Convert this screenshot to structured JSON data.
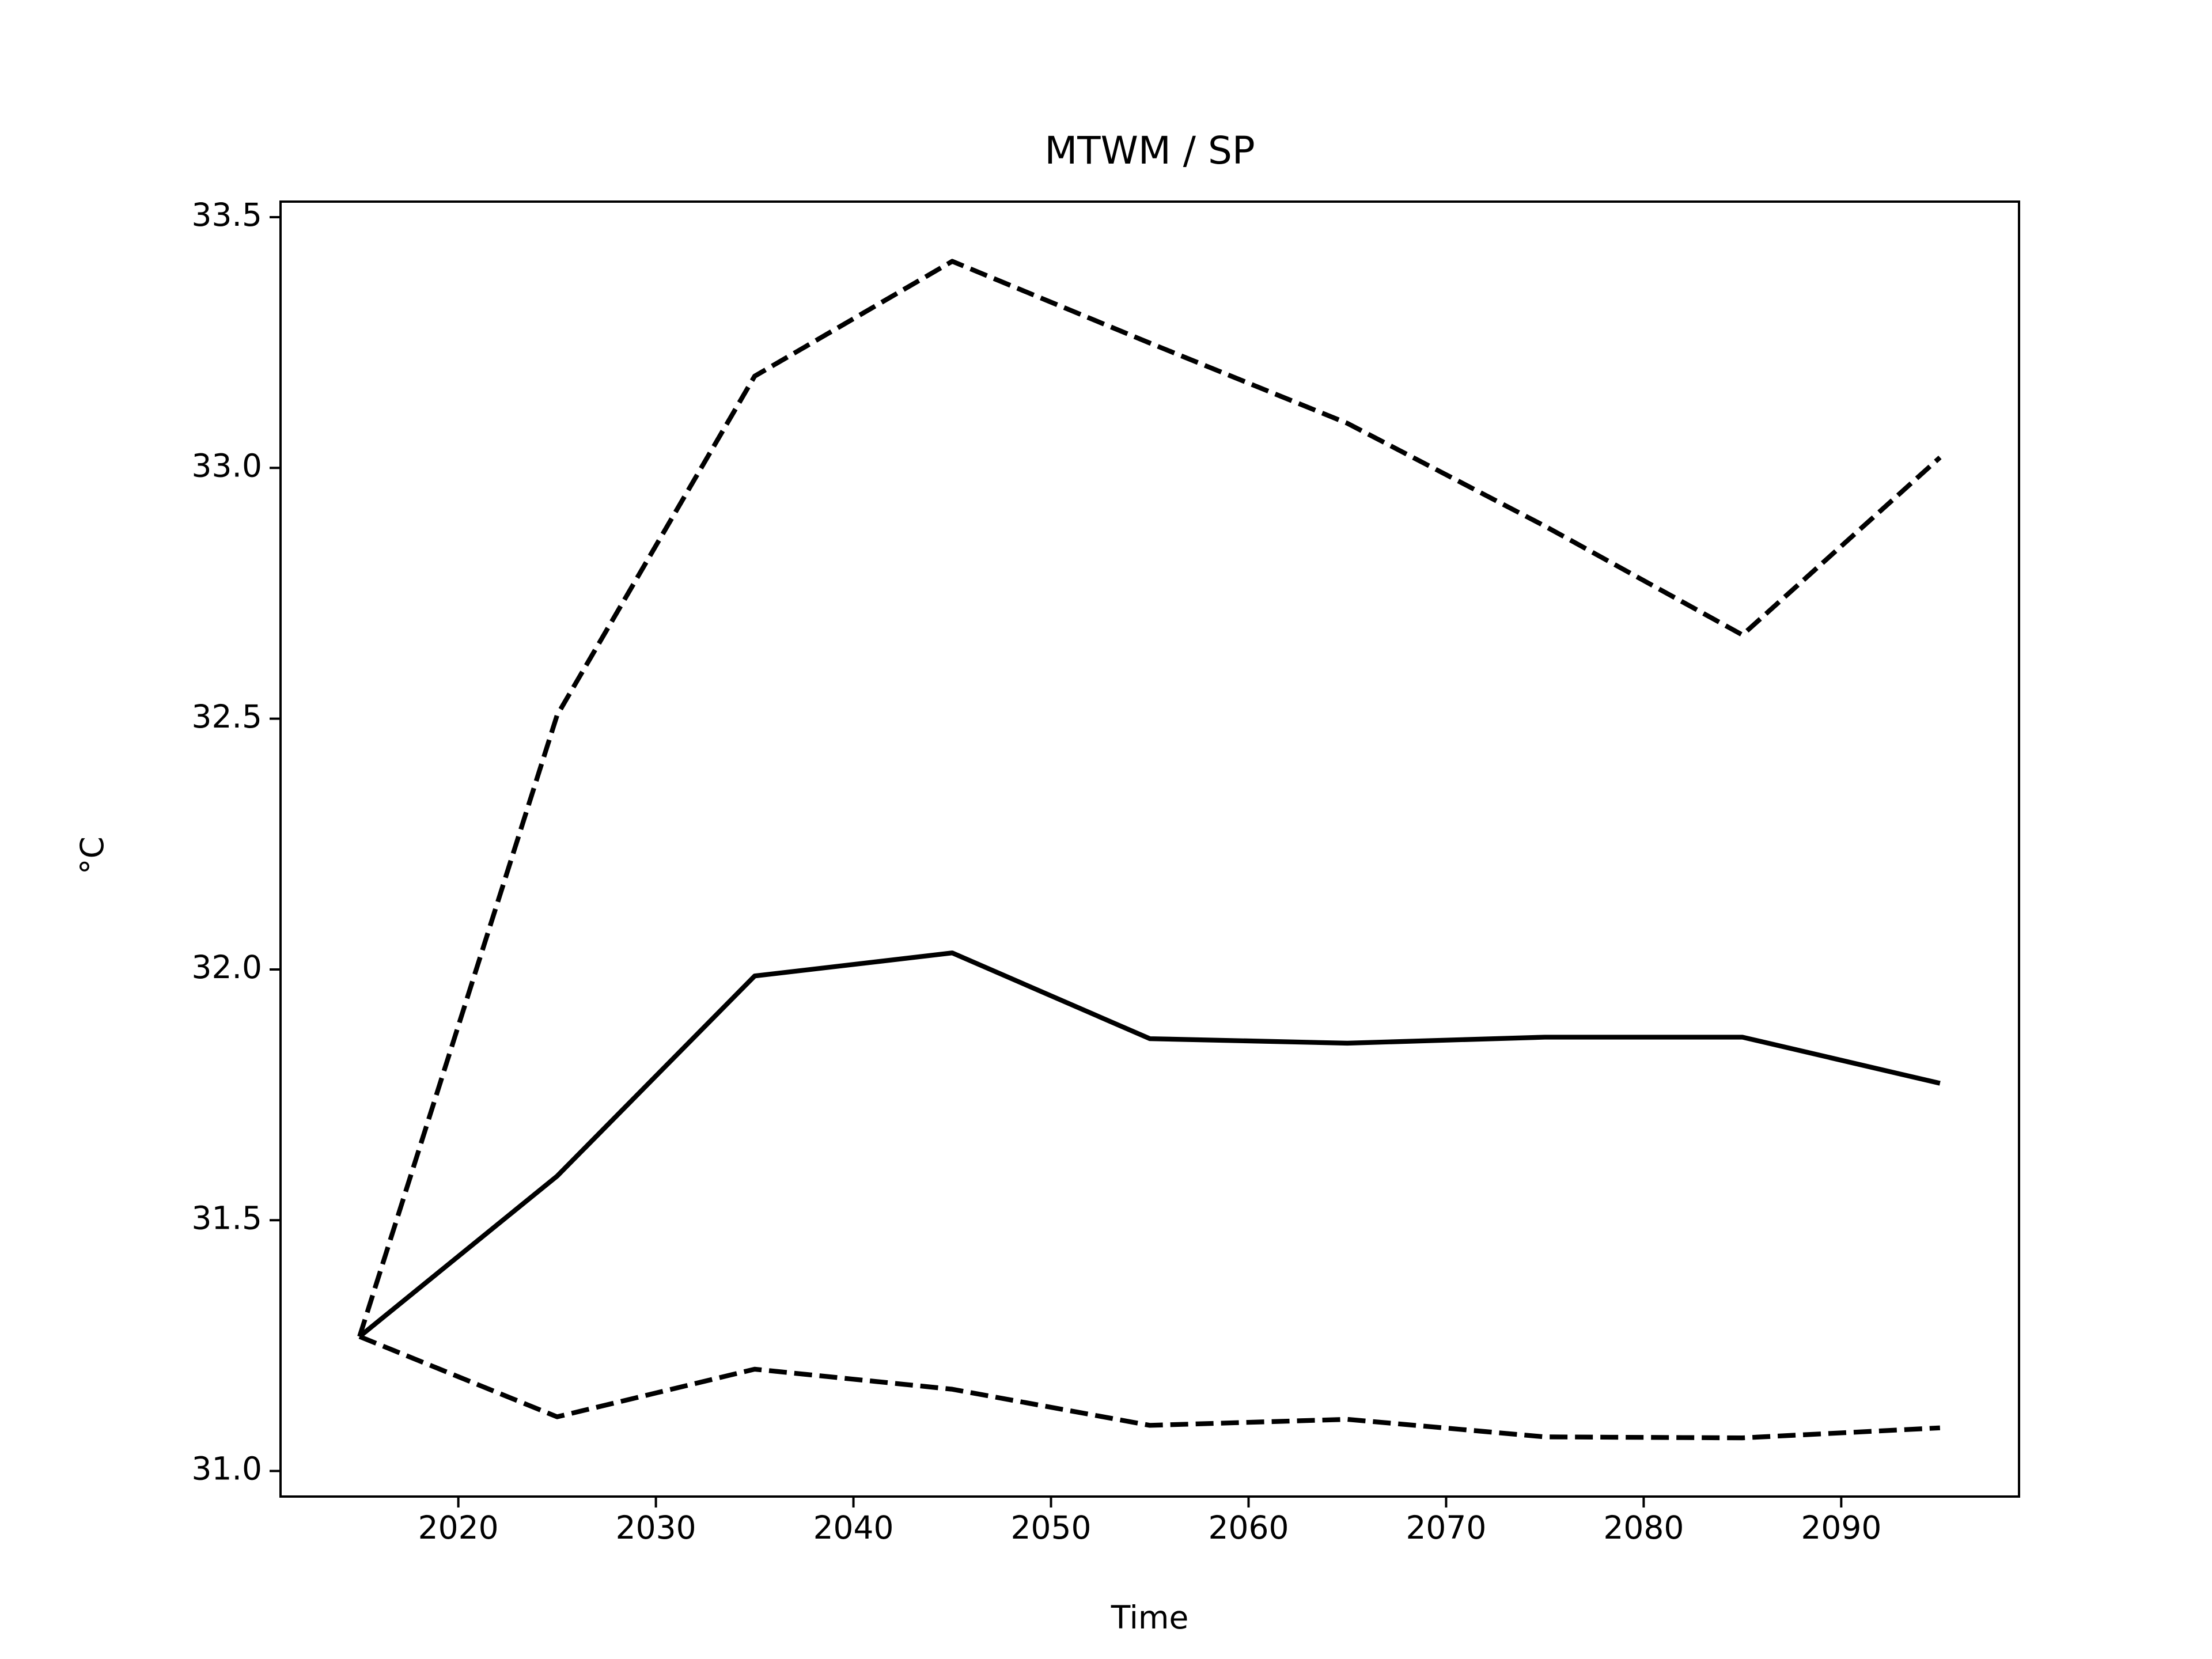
{
  "chart_data": {
    "type": "line",
    "title": "MTWM / SP",
    "x_label": "Time",
    "y_label": "°C",
    "x": [
      2015,
      2025,
      2035,
      2045,
      2055,
      2065,
      2075,
      2085,
      2095
    ],
    "series": [
      {
        "color": "#000000",
        "dashed": false,
        "values": [
          31.268,
          31.588,
          31.987,
          32.033,
          31.862,
          31.853,
          31.865,
          31.865,
          31.773
        ]
      },
      {
        "color": "#000000",
        "dashed": true,
        "values": [
          31.268,
          32.507,
          33.183,
          33.412,
          33.249,
          33.089,
          32.884,
          32.667,
          33.021
        ]
      },
      {
        "color": "#000000",
        "dashed": true,
        "values": [
          31.268,
          31.108,
          31.203,
          31.163,
          31.091,
          31.103,
          31.068,
          31.066,
          31.086
        ]
      }
    ],
    "xlim": [
      2011,
      2099
    ],
    "xticks": [
      2020,
      2030,
      2040,
      2050,
      2060,
      2070,
      2080,
      2090
    ],
    "ylim": [
      30.949,
      33.531
    ],
    "yticks": [
      {
        "value": 31,
        "label": "31.0"
      },
      31.5,
      {
        "value": 32,
        "label": "32.0"
      },
      32.5,
      {
        "value": 33,
        "label": "33.0"
      },
      33.5
    ],
    "grid": false
  }
}
